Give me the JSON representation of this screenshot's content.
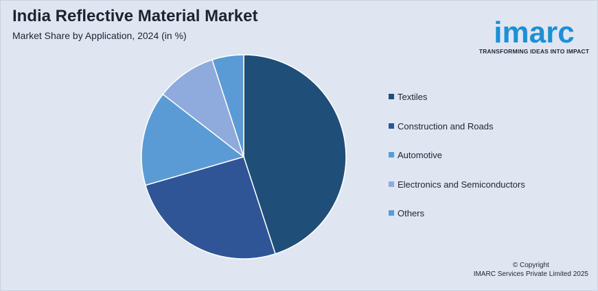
{
  "header": {
    "title": "India Reflective Material Market",
    "subtitle": "Market Share by Application, 2024 (in %)"
  },
  "logo": {
    "wordmark": "imarc",
    "tagline": "TRANSFORMING IDEAS INTO IMPACT",
    "color": "#1e8fd6"
  },
  "footer": {
    "copyright": "© Copyright",
    "company": "IMARC Services Private Limited 2025"
  },
  "chart_data": {
    "type": "pie",
    "title": "India Reflective Material Market",
    "subtitle": "Market Share by Application, 2024 (in %)",
    "legend_position": "right",
    "categories": [
      "Textiles",
      "Construction and Roads",
      "Automotive",
      "Electronics and Semiconductors",
      "Others"
    ],
    "values": [
      45,
      25.5,
      15,
      9.5,
      5
    ],
    "colors": [
      "#1f4e79",
      "#2f5597",
      "#5b9bd5",
      "#8faadc",
      "#5b9bd5"
    ]
  }
}
